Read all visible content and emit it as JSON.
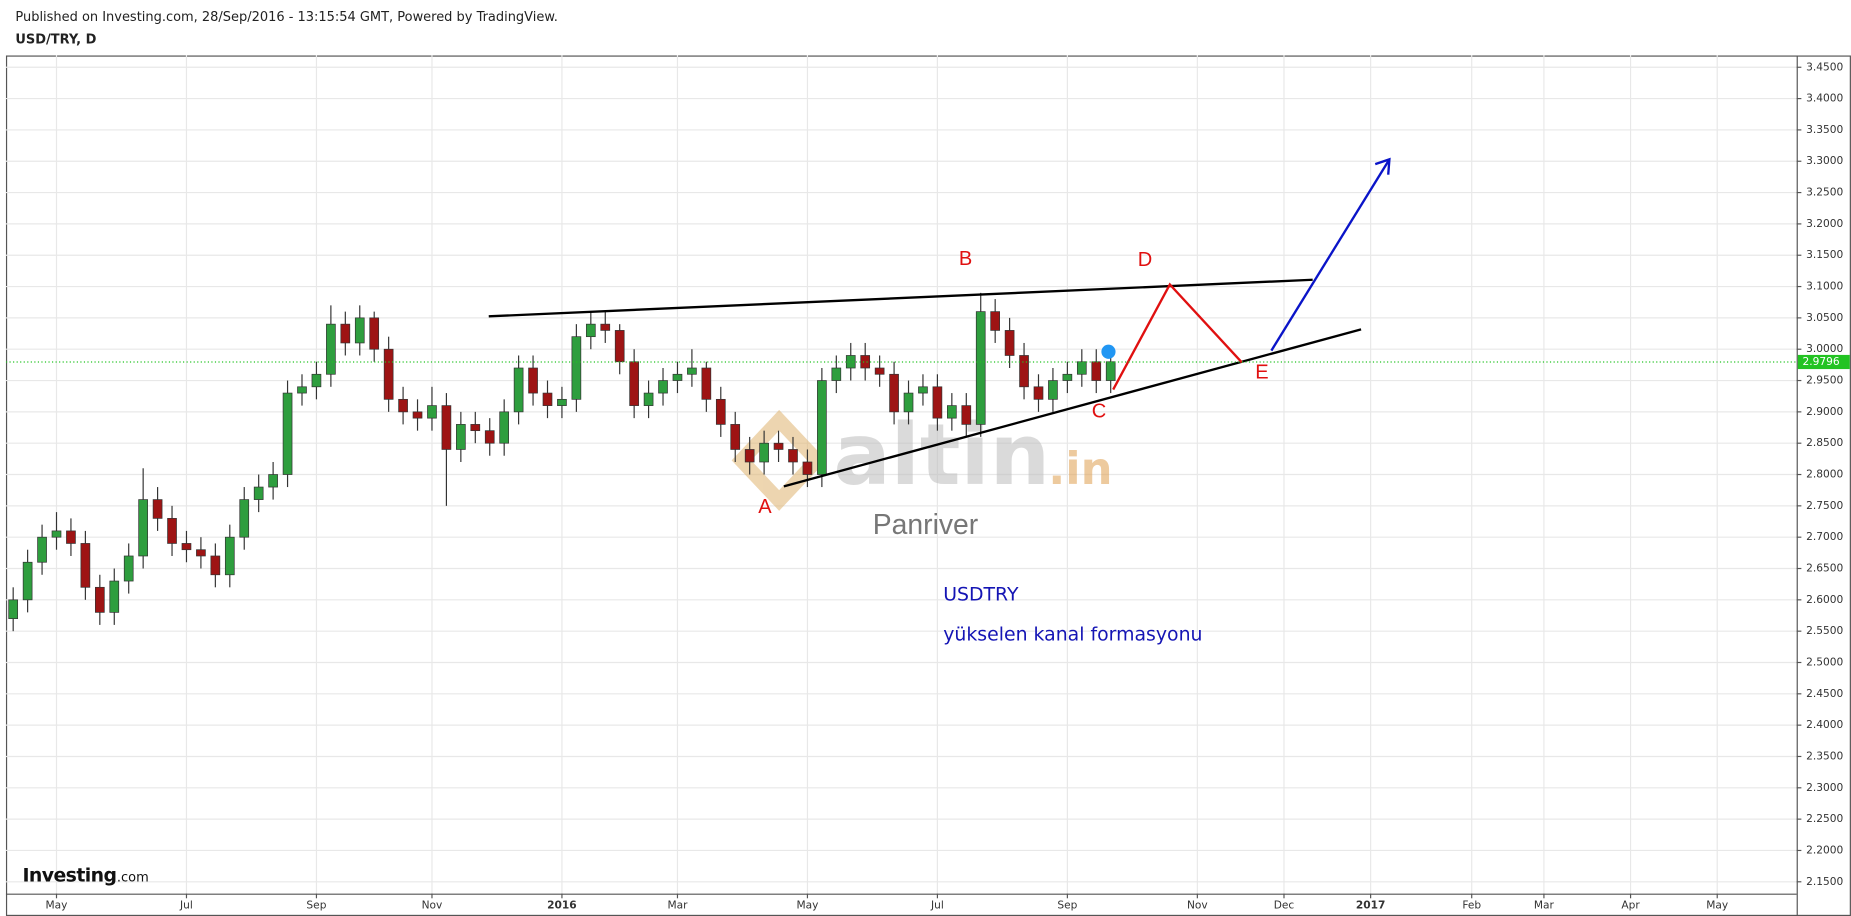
{
  "header": {
    "published": "Published on Investing.com, 28/Sep/2016 - 13:15:54 GMT, Powered by TradingView.",
    "symbol": "USD/TRY, D"
  },
  "chart_data": {
    "type": "candlestick",
    "categories": [
      null,
      null,
      null,
      "May",
      null,
      null,
      null,
      null,
      null,
      null,
      null,
      null,
      "Jul",
      null,
      null,
      null,
      null,
      null,
      null,
      null,
      null,
      "Sep",
      null,
      null,
      null,
      null,
      null,
      null,
      null,
      "Nov",
      null,
      null,
      null,
      null,
      null,
      null,
      null,
      null,
      "2016",
      null,
      null,
      null,
      null,
      null,
      null,
      null,
      "Mar",
      null,
      null,
      null,
      null,
      null,
      null,
      null,
      null,
      "May",
      null,
      null,
      null,
      null,
      null,
      null,
      null,
      null,
      "Jul",
      null,
      null,
      null,
      null,
      null,
      null,
      null,
      null,
      "Sep",
      null,
      null,
      null,
      null,
      null,
      null,
      null,
      null,
      "Nov",
      null,
      null,
      null,
      null,
      null,
      "Dec",
      null,
      null,
      null,
      null,
      null,
      "2017",
      null,
      null,
      null,
      null,
      null,
      null,
      "Feb",
      null,
      null,
      null,
      null,
      "Mar",
      null,
      null,
      null,
      null,
      null,
      "Apr",
      null,
      null,
      null,
      null,
      null,
      "May",
      null,
      null,
      null,
      null,
      null
    ],
    "open": [
      2.57,
      2.6,
      2.66,
      2.7,
      2.71,
      2.69,
      2.62,
      2.58,
      2.63,
      2.67,
      2.76,
      2.73,
      2.69,
      2.68,
      2.67,
      2.64,
      2.7,
      2.76,
      2.78,
      2.8,
      2.93,
      2.94,
      2.96,
      3.04,
      3.01,
      3.05,
      3.0,
      2.92,
      2.9,
      2.89,
      2.91,
      2.84,
      2.88,
      2.87,
      2.85,
      2.9,
      2.97,
      2.93,
      2.91,
      2.92,
      3.02,
      3.04,
      3.03,
      2.98,
      2.91,
      2.93,
      2.95,
      2.96,
      2.97,
      2.92,
      2.88,
      2.84,
      2.82,
      2.85,
      2.84,
      2.82,
      2.8,
      2.95,
      2.97,
      2.99,
      2.97,
      2.96,
      2.9,
      2.93,
      2.94,
      2.89,
      2.91,
      2.88,
      3.06,
      3.03,
      2.99,
      2.94,
      2.92,
      2.95,
      2.96,
      2.98,
      2.95,
      null,
      null,
      null,
      null,
      null,
      null,
      null,
      null,
      null,
      null,
      null,
      null,
      null,
      null,
      null,
      null,
      null,
      null,
      null,
      null,
      null,
      null,
      null,
      null,
      null,
      null,
      null,
      null,
      null,
      null,
      null,
      null,
      null,
      null,
      null,
      null,
      null,
      null,
      null,
      null,
      null,
      null,
      null,
      null,
      null,
      null,
      null
    ],
    "high": [
      2.62,
      2.68,
      2.72,
      2.74,
      2.73,
      2.71,
      2.64,
      2.65,
      2.69,
      2.81,
      2.78,
      2.75,
      2.71,
      2.7,
      2.69,
      2.72,
      2.78,
      2.8,
      2.82,
      2.95,
      2.96,
      2.98,
      3.07,
      3.06,
      3.07,
      3.06,
      3.02,
      2.94,
      2.92,
      2.94,
      2.93,
      2.9,
      2.9,
      2.89,
      2.92,
      2.99,
      2.99,
      2.95,
      2.94,
      3.04,
      3.06,
      3.06,
      3.04,
      3.0,
      2.95,
      2.97,
      2.98,
      3.0,
      2.98,
      2.94,
      2.9,
      2.86,
      2.87,
      2.87,
      2.86,
      2.84,
      2.97,
      2.99,
      3.01,
      3.01,
      2.99,
      2.98,
      2.95,
      2.96,
      2.96,
      2.93,
      2.93,
      3.09,
      3.08,
      3.05,
      3.01,
      2.96,
      2.97,
      2.98,
      3.0,
      3.0,
      3.0,
      null,
      null,
      null,
      null,
      null,
      null,
      null,
      null,
      null,
      null,
      null,
      null,
      null,
      null,
      null,
      null,
      null,
      null,
      null,
      null,
      null,
      null,
      null,
      null,
      null,
      null,
      null,
      null,
      null,
      null,
      null,
      null,
      null,
      null,
      null,
      null,
      null,
      null,
      null,
      null,
      null,
      null,
      null,
      null,
      null,
      null,
      null
    ],
    "low": [
      2.55,
      2.58,
      2.64,
      2.68,
      2.67,
      2.6,
      2.56,
      2.56,
      2.61,
      2.65,
      2.71,
      2.67,
      2.66,
      2.65,
      2.62,
      2.62,
      2.68,
      2.74,
      2.76,
      2.78,
      2.91,
      2.92,
      2.94,
      2.99,
      2.99,
      2.98,
      2.9,
      2.88,
      2.87,
      2.87,
      2.75,
      2.82,
      2.85,
      2.83,
      2.83,
      2.88,
      2.91,
      2.89,
      2.89,
      2.9,
      3.0,
      3.01,
      2.96,
      2.89,
      2.89,
      2.91,
      2.93,
      2.94,
      2.9,
      2.86,
      2.82,
      2.8,
      2.8,
      2.82,
      2.8,
      2.78,
      2.78,
      2.93,
      2.95,
      2.95,
      2.94,
      2.88,
      2.88,
      2.91,
      2.87,
      2.87,
      2.86,
      2.86,
      3.01,
      2.97,
      2.92,
      2.9,
      2.9,
      2.93,
      2.94,
      2.93,
      2.93,
      null,
      null,
      null,
      null,
      null,
      null,
      null,
      null,
      null,
      null,
      null,
      null,
      null,
      null,
      null,
      null,
      null,
      null,
      null,
      null,
      null,
      null,
      null,
      null,
      null,
      null,
      null,
      null,
      null,
      null,
      null,
      null,
      null,
      null,
      null,
      null,
      null,
      null,
      null,
      null,
      null,
      null,
      null,
      null,
      null,
      null,
      null
    ],
    "close": [
      2.6,
      2.66,
      2.7,
      2.71,
      2.69,
      2.62,
      2.58,
      2.63,
      2.67,
      2.76,
      2.73,
      2.69,
      2.68,
      2.67,
      2.64,
      2.7,
      2.76,
      2.78,
      2.8,
      2.93,
      2.94,
      2.96,
      3.04,
      3.01,
      3.05,
      3.0,
      2.92,
      2.9,
      2.89,
      2.91,
      2.84,
      2.88,
      2.87,
      2.85,
      2.9,
      2.97,
      2.93,
      2.91,
      2.92,
      3.02,
      3.04,
      3.03,
      2.98,
      2.91,
      2.93,
      2.95,
      2.96,
      2.97,
      2.92,
      2.88,
      2.84,
      2.82,
      2.85,
      2.84,
      2.82,
      2.8,
      2.95,
      2.97,
      2.99,
      2.97,
      2.96,
      2.9,
      2.93,
      2.94,
      2.89,
      2.91,
      2.88,
      3.06,
      3.03,
      2.99,
      2.94,
      2.92,
      2.95,
      2.96,
      2.98,
      2.95,
      2.98,
      null,
      null,
      null,
      null,
      null,
      null,
      null,
      null,
      null,
      null,
      null,
      null,
      null,
      null,
      null,
      null,
      null,
      null,
      null,
      null,
      null,
      null,
      null,
      null,
      null,
      null,
      null,
      null,
      null,
      null,
      null,
      null,
      null,
      null,
      null,
      null,
      null,
      null,
      null,
      null,
      null,
      null,
      null,
      null,
      null,
      null,
      null
    ],
    "up_color": "#2e9e3e",
    "down_color": "#9e1414",
    "last_price": 2.9796,
    "last_color": "#22c322",
    "ylim": [
      2.1312,
      3.4688
    ],
    "yticks": [
      {
        "value": 2.15,
        "label": "2.1500"
      },
      {
        "value": 2.2,
        "label": "2.2000"
      },
      {
        "value": 2.25,
        "label": "2.2500"
      },
      {
        "value": 2.3,
        "label": "2.3000"
      },
      {
        "value": 2.35,
        "label": "2.3500"
      },
      {
        "value": 2.4,
        "label": "2.4000"
      },
      {
        "value": 2.45,
        "label": "2.4500"
      },
      {
        "value": 2.5,
        "label": "2.5000"
      },
      {
        "value": 2.55,
        "label": "2.5500"
      },
      {
        "value": 2.6,
        "label": "2.6000"
      },
      {
        "value": 2.65,
        "label": "2.6500"
      },
      {
        "value": 2.7,
        "label": "2.7000"
      },
      {
        "value": 2.75,
        "label": "2.7500"
      },
      {
        "value": 2.8,
        "label": "2.8000"
      },
      {
        "value": 2.85,
        "label": "2.8500"
      },
      {
        "value": 2.9,
        "label": "2.9000"
      },
      {
        "value": 2.95,
        "label": "2.9500"
      },
      {
        "value": 3.0,
        "label": "3.0000"
      },
      {
        "value": 3.05,
        "label": "3.0500"
      },
      {
        "value": 3.1,
        "label": "3.1000"
      },
      {
        "value": 3.15,
        "label": "3.1500"
      },
      {
        "value": 3.2,
        "label": "3.2000"
      },
      {
        "value": 3.25,
        "label": "3.2500"
      },
      {
        "value": 3.3,
        "label": "3.3000"
      },
      {
        "value": 3.35,
        "label": "3.3500"
      },
      {
        "value": 3.4,
        "label": "3.4000"
      },
      {
        "value": 3.45,
        "label": "3.4500"
      }
    ],
    "grid": true,
    "annotations": {
      "A": "A",
      "B": "B",
      "C": "C",
      "D": "D",
      "E": "E",
      "symbol_note": "USDTRY",
      "pattern_note": "yükselen kanal formasyonu"
    },
    "watermark": {
      "name": "altin",
      "suffix": ".in",
      "author": "Panriver"
    },
    "logo": {
      "name": "Investing",
      "suffix": ".com"
    }
  }
}
